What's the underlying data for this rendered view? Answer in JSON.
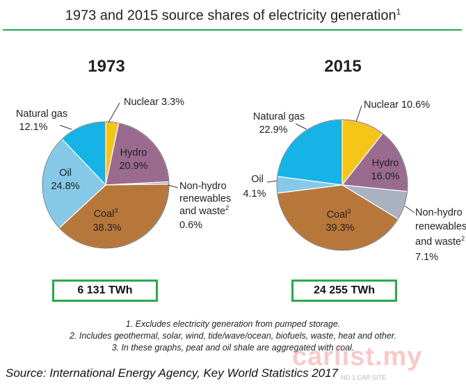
{
  "header": {
    "title": "1973 and 2015 source shares of electricity generation",
    "title_sup": "1"
  },
  "chart_data": [
    {
      "type": "pie",
      "title": "1973",
      "total_label": "6 131 TWh",
      "slices": [
        {
          "name": "Nuclear",
          "value": 3.3,
          "color": "#f5c518"
        },
        {
          "name": "Hydro",
          "value": 20.9,
          "color": "#9a6b8f"
        },
        {
          "name": "Non-hydro renewables and waste",
          "value": 0.6,
          "color": "#a8b2c0"
        },
        {
          "name": "Coal",
          "value": 38.3,
          "color": "#b8773a"
        },
        {
          "name": "Oil",
          "value": 24.8,
          "color": "#86c8e8"
        },
        {
          "name": "Natural gas",
          "value": 12.1,
          "color": "#15b3e6"
        }
      ],
      "labels": {
        "nuclear": "Nuclear 3.3%",
        "hydro_name": "Hydro",
        "hydro_value": "20.9%",
        "nonhydro_1": "Non-hydro",
        "nonhydro_2": "renewables",
        "nonhydro_3": "and waste",
        "nonhydro_sup": "2",
        "nonhydro_value": "0.6%",
        "coal_name": "Coal",
        "coal_sup": "3",
        "coal_value": "38.3%",
        "oil_name": "Oil",
        "oil_value": "24.8%",
        "gas_name": "Natural gas",
        "gas_value": "12.1%"
      }
    },
    {
      "type": "pie",
      "title": "2015",
      "total_label": "24 255 TWh",
      "slices": [
        {
          "name": "Nuclear",
          "value": 10.6,
          "color": "#f5c518"
        },
        {
          "name": "Hydro",
          "value": 16.0,
          "color": "#9a6b8f"
        },
        {
          "name": "Non-hydro renewables and waste",
          "value": 7.1,
          "color": "#a8b2c0"
        },
        {
          "name": "Coal",
          "value": 39.3,
          "color": "#b8773a"
        },
        {
          "name": "Oil",
          "value": 4.1,
          "color": "#86c8e8"
        },
        {
          "name": "Natural gas",
          "value": 22.9,
          "color": "#15b3e6"
        }
      ],
      "labels": {
        "nuclear": "Nuclear 10.6%",
        "hydro_name": "Hydro",
        "hydro_value": "16.0%",
        "nonhydro_1": "Non-hydro",
        "nonhydro_2": "renewables",
        "nonhydro_3": "and waste",
        "nonhydro_sup": "2",
        "nonhydro_value": "7.1%",
        "coal_name": "Coal",
        "coal_sup": "3",
        "coal_value": "39.3%",
        "oil_name": "Oil",
        "oil_value": "4.1%",
        "gas_name": "Natural gas",
        "gas_value": "22.9%"
      }
    }
  ],
  "notes": [
    "1. Excludes electricity generation from pumped storage.",
    "2. Includes geothermal, solar, wind, tide/wave/ocean, biofuels, waste, heat and other.",
    "3. In these graphs, peat and oil shale are aggregated with coal."
  ],
  "source": "Source: International Energy Agency, Key World Statistics 2017",
  "watermark": {
    "main": "carlist.my",
    "sub": "NO.1 CAR SITE"
  }
}
